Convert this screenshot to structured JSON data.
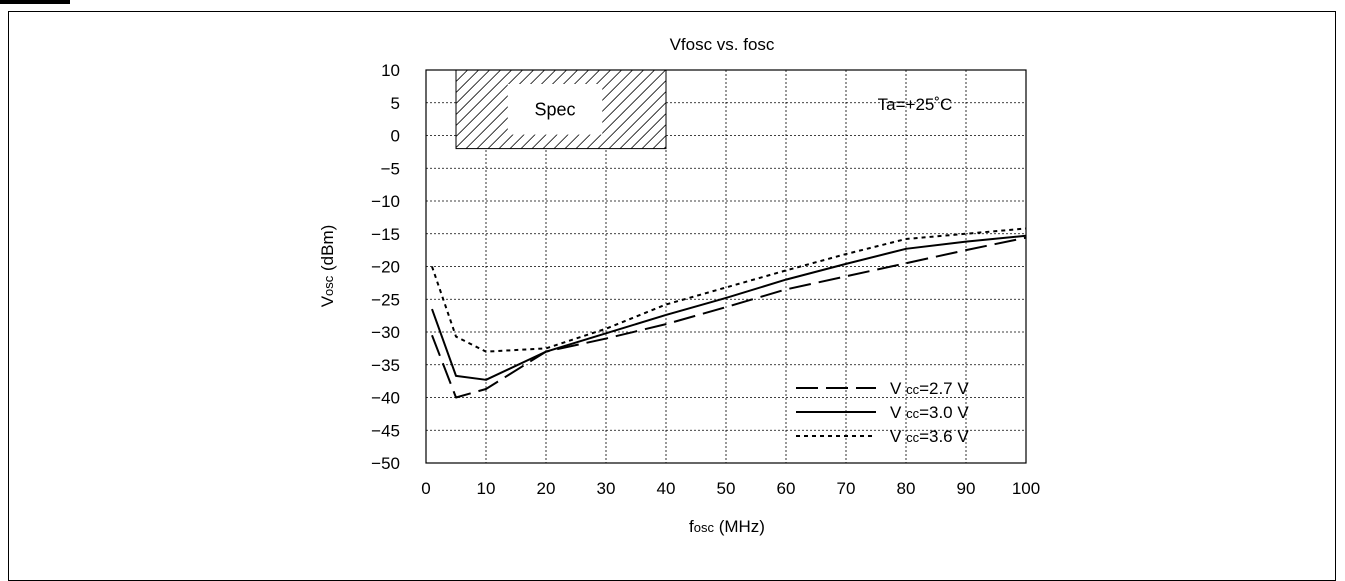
{
  "chart_data": {
    "type": "line",
    "title": "Vfosc vs. fosc",
    "xlabel": {
      "main": "f",
      "sub": "osc",
      "unit": " (MHz)"
    },
    "ylabel": {
      "main": "V",
      "sub": "osc",
      "unit": " (dBm)"
    },
    "xlim": [
      0,
      100
    ],
    "ylim": [
      -50,
      10
    ],
    "xticks": [
      0,
      10,
      20,
      30,
      40,
      50,
      60,
      70,
      80,
      90,
      100
    ],
    "yticks": [
      10,
      5,
      0,
      -5,
      -10,
      -15,
      -20,
      -25,
      -30,
      -35,
      -40,
      -45,
      -50
    ],
    "grid": true,
    "legend_position": "bottom-right",
    "annotation": "Ta=+25˚C",
    "spec_region": {
      "label": "Spec",
      "x": [
        5,
        40
      ],
      "y": [
        -2,
        10
      ]
    },
    "series": [
      {
        "name": "V CC=2.7 V",
        "name_parts": {
          "main": "V",
          "sub": "CC",
          "rest": "=2.7 V"
        },
        "style": "dashed",
        "x": [
          1,
          5,
          10,
          20,
          30,
          40,
          50,
          60,
          70,
          80,
          90,
          100
        ],
        "y": [
          -30.5,
          -40,
          -38.7,
          -33,
          -31,
          -28.8,
          -26.2,
          -23.5,
          -21.5,
          -19.5,
          -17.5,
          -15.6
        ]
      },
      {
        "name": "V CC=3.0 V",
        "name_parts": {
          "main": "V",
          "sub": "CC",
          "rest": "=3.0 V"
        },
        "style": "solid",
        "x": [
          1,
          5,
          10,
          20,
          30,
          40,
          50,
          60,
          70,
          80,
          90,
          100
        ],
        "y": [
          -26.5,
          -36.7,
          -37.3,
          -33,
          -30.2,
          -27.4,
          -24.8,
          -22,
          -19.6,
          -17.3,
          -16.2,
          -15.3
        ]
      },
      {
        "name": "V CC=3.6 V",
        "name_parts": {
          "main": "V",
          "sub": "CC",
          "rest": "=3.6 V"
        },
        "style": "dotted",
        "x": [
          1,
          5,
          10,
          20,
          30,
          40,
          50,
          60,
          70,
          80,
          90,
          100
        ],
        "y": [
          -20,
          -30.7,
          -33,
          -32.5,
          -29.5,
          -25.8,
          -23.2,
          -20.6,
          -18.1,
          -15.8,
          -15,
          -14.2
        ]
      }
    ]
  }
}
